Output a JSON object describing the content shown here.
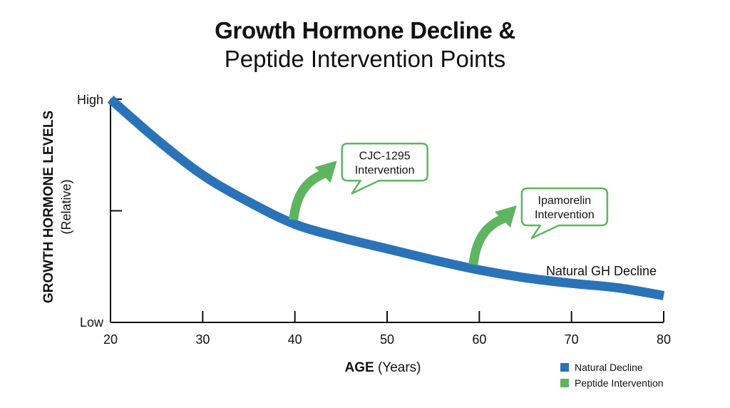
{
  "title_line1": "Growth Hormone Decline &",
  "title_line2": "Peptide Intervention Points",
  "chart_data": {
    "type": "line",
    "xlabel_bold": "AGE",
    "xlabel_unit": "(Years)",
    "ylabel_bold": "GROWTH HORMONE LEVELS",
    "ylabel_unit": "(Relative)",
    "xlim": [
      20,
      80
    ],
    "ylim": [
      0,
      1
    ],
    "x_ticks": [
      20,
      30,
      40,
      50,
      60,
      70,
      80
    ],
    "y_tick_labels": {
      "high": "High",
      "low": "Low"
    },
    "grid": false,
    "series": [
      {
        "name": "Natural Decline",
        "color": "#2a73b8",
        "x": [
          20,
          25,
          30,
          35,
          40,
          45,
          50,
          55,
          60,
          65,
          70,
          75,
          80
        ],
        "y": [
          1.0,
          0.82,
          0.66,
          0.54,
          0.44,
          0.38,
          0.33,
          0.28,
          0.235,
          0.2,
          0.175,
          0.155,
          0.12
        ]
      }
    ],
    "series_label": "Natural GH Decline",
    "interventions": [
      {
        "label_line1": "CJC-1295",
        "label_line2": "Intervention",
        "x": 40
      },
      {
        "label_line1": "Ipamorelin",
        "label_line2": "Intervention",
        "x": 59.5
      }
    ],
    "intervention_color": "#5db55f",
    "legend": [
      {
        "label": "Natural Decline",
        "color": "#2a73b8"
      },
      {
        "label": "Peptide Intervention",
        "color": "#5db55f"
      }
    ]
  }
}
